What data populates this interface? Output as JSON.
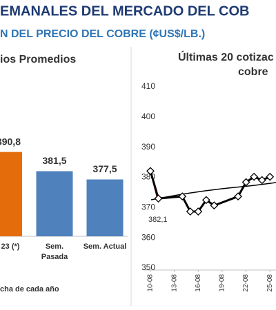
{
  "header": {
    "title": "EMANALES DEL MERCADO DEL COB",
    "subtitle": "N DEL PRECIO DEL COBRE (¢US$/LB.)"
  },
  "chart_data": [
    {
      "type": "bar",
      "title": "ios Promedios",
      "categories": [
        "23 (*)",
        "Sem. Pasada",
        "Sem. Actual"
      ],
      "values": [
        390.8,
        381.5,
        377.5
      ],
      "value_labels": [
        "390,8",
        "381,5",
        "377,5"
      ],
      "colors": [
        "#e46c0a",
        "#4f81bd",
        "#4f81bd"
      ],
      "ylim": [
        350,
        400
      ],
      "footnote": "cha de cada año"
    },
    {
      "type": "line",
      "title": [
        "Últimas 20 cotizac",
        "cobre"
      ],
      "x": [
        "10-08",
        "11-08",
        "14-08",
        "15-08",
        "16-08",
        "17-08",
        "18-08",
        "21-08",
        "22-08",
        "23-08",
        "24-08",
        "25-08"
      ],
      "values": [
        382.1,
        373,
        373.7,
        368.7,
        368.7,
        372.5,
        370.7,
        373.7,
        378.4,
        380.2,
        379.1,
        380.2
      ],
      "color": "#000000",
      "annotation": "382,1",
      "ylim": [
        350,
        410
      ],
      "yticks": [
        350,
        360,
        370,
        380,
        390,
        400,
        410
      ],
      "xticks": [
        "10-08",
        "13-08",
        "16-08",
        "19-08",
        "22-08",
        "25-08"
      ]
    }
  ]
}
